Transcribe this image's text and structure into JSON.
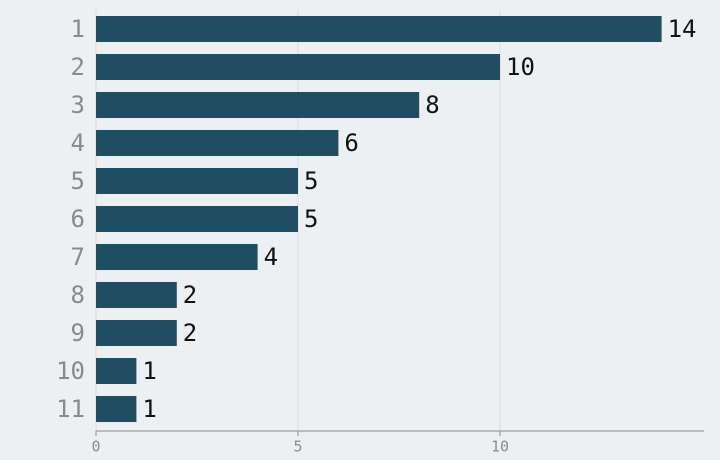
{
  "chart_data": {
    "type": "bar",
    "orientation": "horizontal",
    "categories": [
      "1",
      "2",
      "3",
      "4",
      "5",
      "6",
      "7",
      "8",
      "9",
      "10",
      "11"
    ],
    "values": [
      14,
      10,
      8,
      6,
      5,
      5,
      4,
      2,
      2,
      1,
      1
    ],
    "color": "#1f4e63",
    "xlim": [
      0,
      15
    ],
    "xticks": [
      0,
      5,
      10
    ],
    "grid": true
  }
}
